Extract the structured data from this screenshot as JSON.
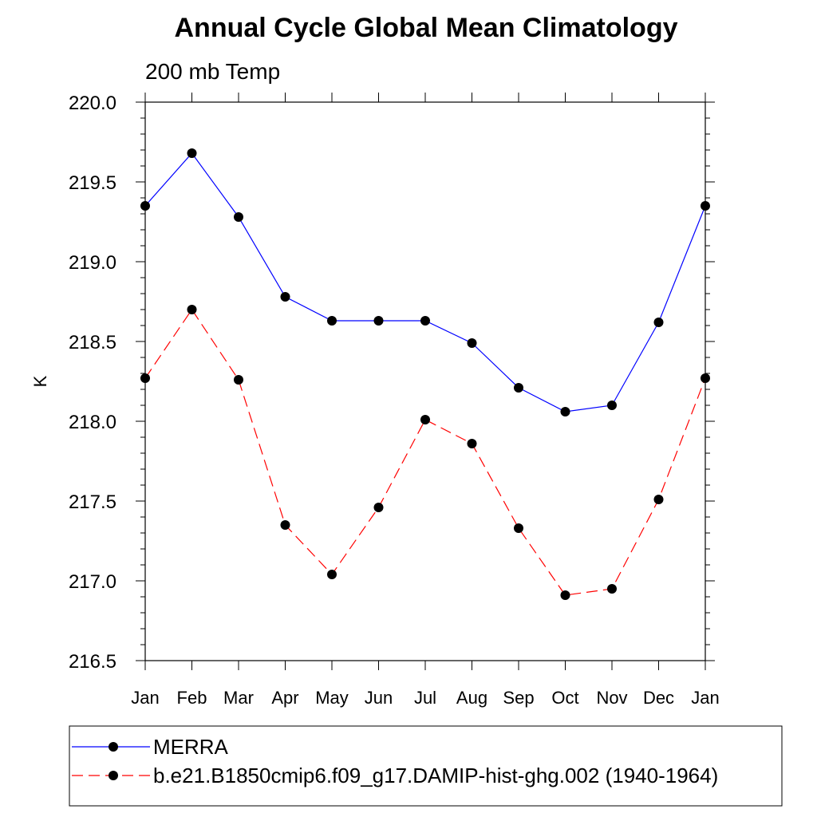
{
  "chart_data": {
    "type": "line",
    "title": "Annual Cycle Global Mean Climatology",
    "subtitle": "200 mb Temp",
    "xlabel": "",
    "ylabel": "K",
    "categories": [
      "Jan",
      "Feb",
      "Mar",
      "Apr",
      "May",
      "Jun",
      "Jul",
      "Aug",
      "Sep",
      "Oct",
      "Nov",
      "Dec",
      "Jan"
    ],
    "ylim": [
      216.5,
      220.0
    ],
    "yticks": [
      "216.5",
      "217.0",
      "217.5",
      "218.0",
      "218.5",
      "219.0",
      "219.5",
      "220.0"
    ],
    "series": [
      {
        "name": "MERRA",
        "color": "#0000ff",
        "dash": "solid",
        "values": [
          219.35,
          219.68,
          219.28,
          218.78,
          218.63,
          218.63,
          218.63,
          218.49,
          218.21,
          218.06,
          218.1,
          218.62,
          219.35
        ]
      },
      {
        "name": "b.e21.B1850cmip6.f09_g17.DAMIP-hist-ghg.002 (1940-1964)",
        "color": "#ff0000",
        "dash": "dashed",
        "values": [
          218.27,
          218.7,
          218.26,
          217.35,
          217.04,
          217.46,
          218.01,
          217.86,
          217.33,
          216.91,
          216.95,
          217.51,
          218.27
        ]
      }
    ],
    "grid": false,
    "legend_position": "bottom"
  }
}
